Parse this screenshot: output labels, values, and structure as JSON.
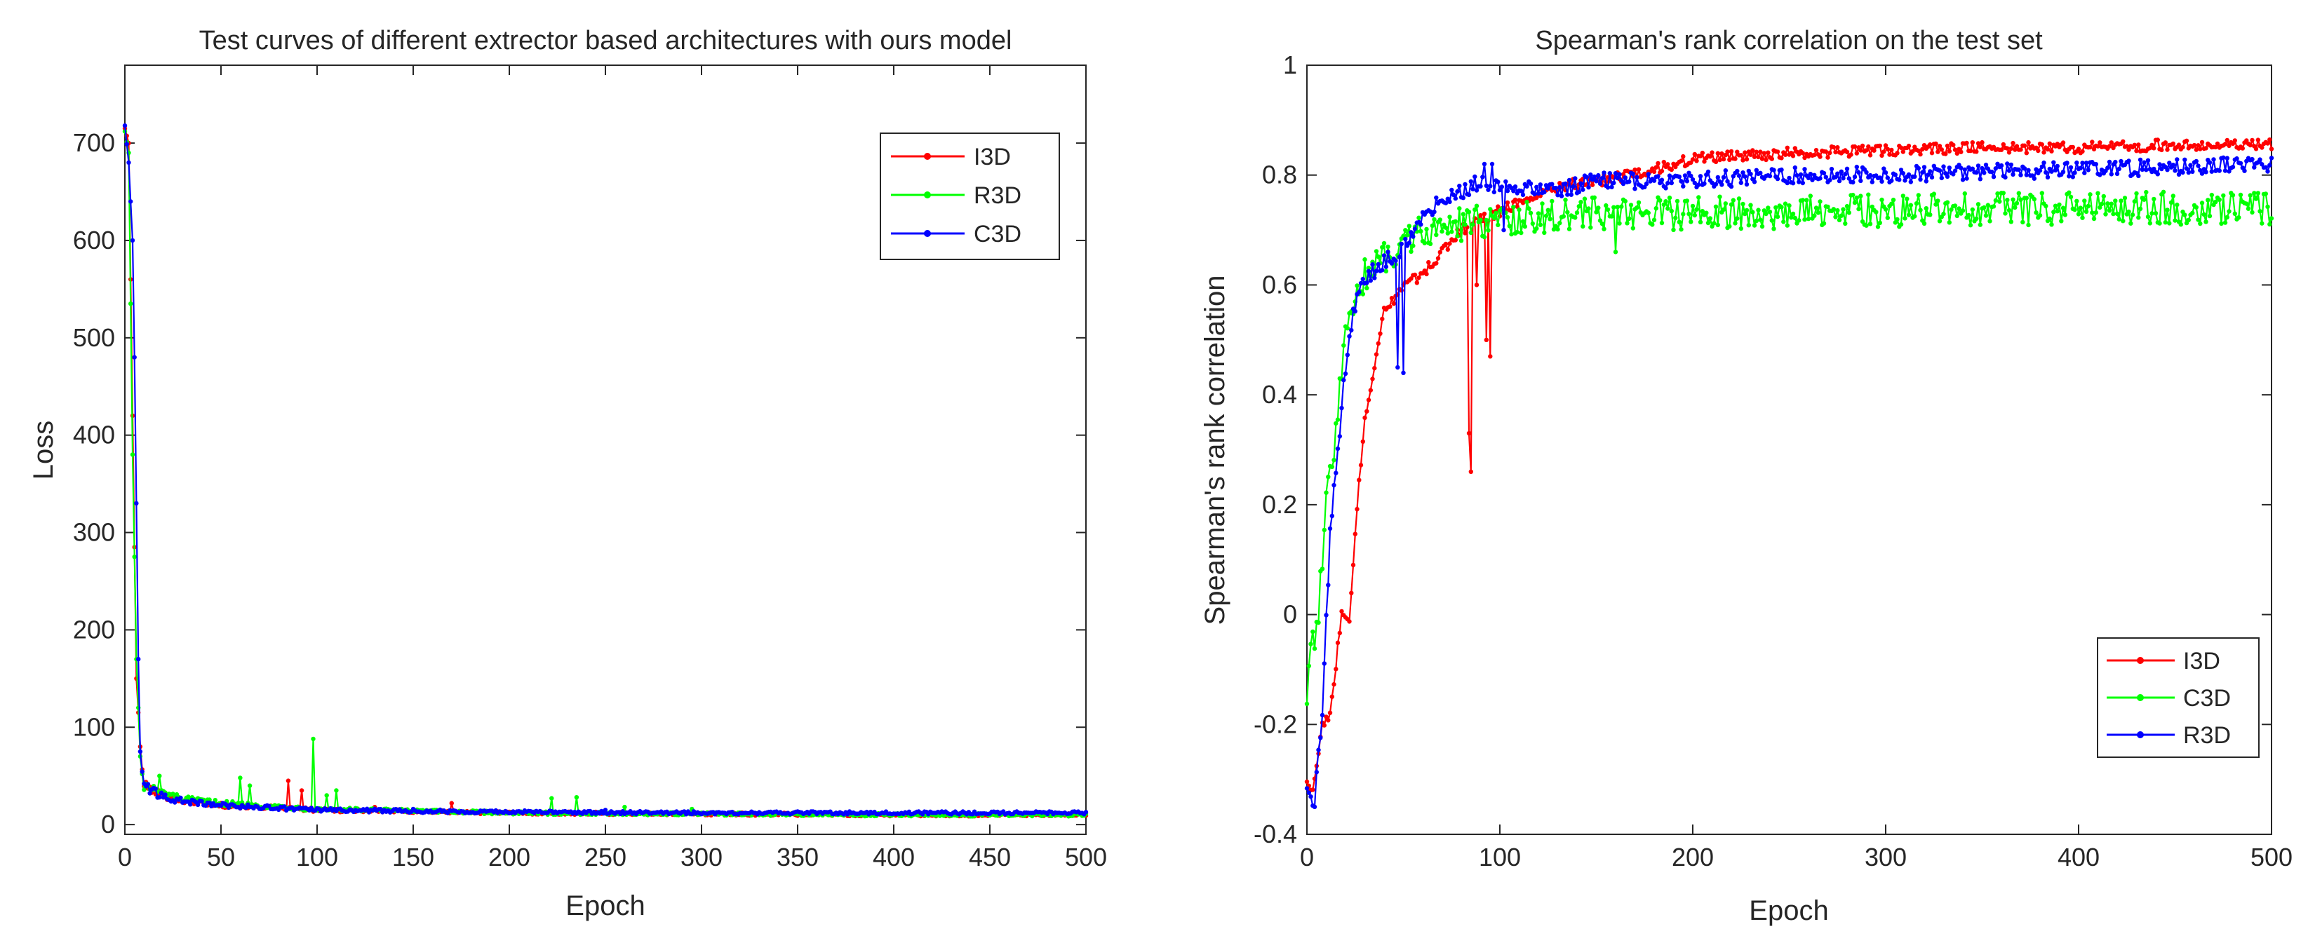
{
  "chart_data": [
    {
      "type": "line",
      "title": "Test curves of different extrector based architectures with ours model",
      "xlabel": "Epoch",
      "ylabel": "Loss",
      "xlim": [
        0,
        500
      ],
      "ylim": [
        -10,
        780
      ],
      "xticks": [
        0,
        50,
        100,
        150,
        200,
        250,
        300,
        350,
        400,
        450,
        500
      ],
      "yticks": [
        0,
        100,
        200,
        300,
        400,
        500,
        600,
        700
      ],
      "xtick_labels": [
        "0",
        "50",
        "100",
        "150",
        "200",
        "250",
        "300",
        "350",
        "400",
        "450",
        "500"
      ],
      "ytick_labels": [
        "0",
        "100",
        "200",
        "300",
        "400",
        "500",
        "600",
        "700"
      ],
      "legend_position": "top-right",
      "series": [
        {
          "name": "I3D",
          "color": "#ff0000",
          "anchors": [
            [
              0,
              715
            ],
            [
              2,
              700
            ],
            [
              4,
              420
            ],
            [
              6,
              150
            ],
            [
              8,
              80
            ],
            [
              10,
              40
            ],
            [
              20,
              30
            ],
            [
              30,
              25
            ],
            [
              50,
              20
            ],
            [
              100,
              15
            ],
            [
              200,
              12
            ],
            [
              300,
              11
            ],
            [
              400,
              10
            ],
            [
              500,
              10
            ]
          ],
          "spikes": [
            [
              85,
              45
            ],
            [
              92,
              35
            ],
            [
              130,
              18
            ],
            [
              170,
              22
            ],
            [
              320,
              10
            ]
          ]
        },
        {
          "name": "R3D",
          "color": "#00ff00",
          "anchors": [
            [
              0,
              712
            ],
            [
              2,
              690
            ],
            [
              4,
              380
            ],
            [
              6,
              170
            ],
            [
              8,
              70
            ],
            [
              10,
              40
            ],
            [
              20,
              32
            ],
            [
              30,
              26
            ],
            [
              50,
              22
            ],
            [
              100,
              16
            ],
            [
              200,
              12
            ],
            [
              300,
              11
            ],
            [
              400,
              10
            ],
            [
              500,
              10
            ]
          ],
          "spikes": [
            [
              18,
              50
            ],
            [
              60,
              48
            ],
            [
              65,
              40
            ],
            [
              98,
              88
            ],
            [
              105,
              30
            ],
            [
              110,
              35
            ],
            [
              222,
              27
            ],
            [
              235,
              28
            ],
            [
              260,
              18
            ],
            [
              295,
              16
            ]
          ]
        },
        {
          "name": "C3D",
          "color": "#0000ff",
          "anchors": [
            [
              0,
              718
            ],
            [
              2,
              680
            ],
            [
              4,
              600
            ],
            [
              5,
              480
            ],
            [
              6,
              330
            ],
            [
              7,
              170
            ],
            [
              8,
              75
            ],
            [
              10,
              40
            ],
            [
              20,
              28
            ],
            [
              30,
              24
            ],
            [
              50,
              20
            ],
            [
              100,
              15
            ],
            [
              200,
              13
            ],
            [
              300,
              12
            ],
            [
              400,
              12
            ],
            [
              500,
              12
            ]
          ],
          "spikes": [
            [
              150,
              16
            ],
            [
              250,
              15
            ]
          ]
        }
      ]
    },
    {
      "type": "line",
      "title": "Spearman's rank correlation on the test set",
      "xlabel": "Epoch",
      "ylabel": "Spearman's rank correlation",
      "xlim": [
        0,
        500
      ],
      "ylim": [
        -0.4,
        1.0
      ],
      "xticks": [
        0,
        100,
        200,
        300,
        400,
        500
      ],
      "yticks": [
        -0.4,
        -0.2,
        0,
        0.2,
        0.4,
        0.6,
        0.8,
        1.0
      ],
      "xtick_labels": [
        "0",
        "100",
        "200",
        "300",
        "400",
        "500"
      ],
      "ytick_labels": [
        "-0.4",
        "-0.2",
        "0",
        "0.2",
        "0.4",
        "0.6",
        "0.8",
        "1"
      ],
      "legend_position": "bottom-right",
      "series": [
        {
          "name": "I3D",
          "color": "#ff0000",
          "anchors": [
            [
              0,
              -0.3
            ],
            [
              3,
              -0.32
            ],
            [
              8,
              -0.2
            ],
            [
              12,
              -0.18
            ],
            [
              18,
              0.0
            ],
            [
              22,
              -0.02
            ],
            [
              26,
              0.2
            ],
            [
              30,
              0.35
            ],
            [
              35,
              0.45
            ],
            [
              40,
              0.55
            ],
            [
              50,
              0.6
            ],
            [
              60,
              0.62
            ],
            [
              70,
              0.66
            ],
            [
              80,
              0.7
            ],
            [
              90,
              0.72
            ],
            [
              110,
              0.75
            ],
            [
              130,
              0.78
            ],
            [
              150,
              0.79
            ],
            [
              170,
              0.8
            ],
            [
              200,
              0.83
            ],
            [
              250,
              0.84
            ],
            [
              300,
              0.845
            ],
            [
              350,
              0.85
            ],
            [
              400,
              0.85
            ],
            [
              450,
              0.855
            ],
            [
              500,
              0.855
            ]
          ],
          "noise": 0.01,
          "spikes": [
            [
              84,
              0.33
            ],
            [
              85,
              0.26
            ],
            [
              88,
              0.6
            ],
            [
              93,
              0.5
            ],
            [
              95,
              0.47
            ]
          ]
        },
        {
          "name": "C3D",
          "color": "#00ff00",
          "anchors": [
            [
              0,
              -0.15
            ],
            [
              3,
              -0.05
            ],
            [
              6,
              0.0
            ],
            [
              10,
              0.2
            ],
            [
              14,
              0.3
            ],
            [
              20,
              0.5
            ],
            [
              25,
              0.58
            ],
            [
              30,
              0.62
            ],
            [
              40,
              0.65
            ],
            [
              60,
              0.7
            ],
            [
              80,
              0.71
            ],
            [
              100,
              0.72
            ],
            [
              150,
              0.73
            ],
            [
              200,
              0.73
            ],
            [
              300,
              0.735
            ],
            [
              400,
              0.74
            ],
            [
              500,
              0.74
            ]
          ],
          "noise": 0.03,
          "spikes": [
            [
              12,
              0.27
            ],
            [
              160,
              0.66
            ]
          ]
        },
        {
          "name": "R3D",
          "color": "#0000ff",
          "anchors": [
            [
              0,
              -0.31
            ],
            [
              2,
              -0.34
            ],
            [
              4,
              -0.33
            ],
            [
              8,
              -0.18
            ],
            [
              12,
              0.15
            ],
            [
              16,
              0.3
            ],
            [
              20,
              0.45
            ],
            [
              24,
              0.55
            ],
            [
              28,
              0.6
            ],
            [
              32,
              0.62
            ],
            [
              40,
              0.64
            ],
            [
              50,
              0.67
            ],
            [
              60,
              0.72
            ],
            [
              70,
              0.76
            ],
            [
              80,
              0.77
            ],
            [
              90,
              0.79
            ],
            [
              100,
              0.78
            ],
            [
              130,
              0.77
            ],
            [
              150,
              0.79
            ],
            [
              200,
              0.79
            ],
            [
              250,
              0.8
            ],
            [
              300,
              0.8
            ],
            [
              350,
              0.805
            ],
            [
              400,
              0.81
            ],
            [
              450,
              0.815
            ],
            [
              500,
              0.82
            ]
          ],
          "noise": 0.015,
          "spikes": [
            [
              4,
              -0.35
            ],
            [
              47,
              0.45
            ],
            [
              50,
              0.44
            ],
            [
              92,
              0.82
            ],
            [
              96,
              0.82
            ],
            [
              102,
              0.7
            ]
          ]
        }
      ]
    }
  ]
}
